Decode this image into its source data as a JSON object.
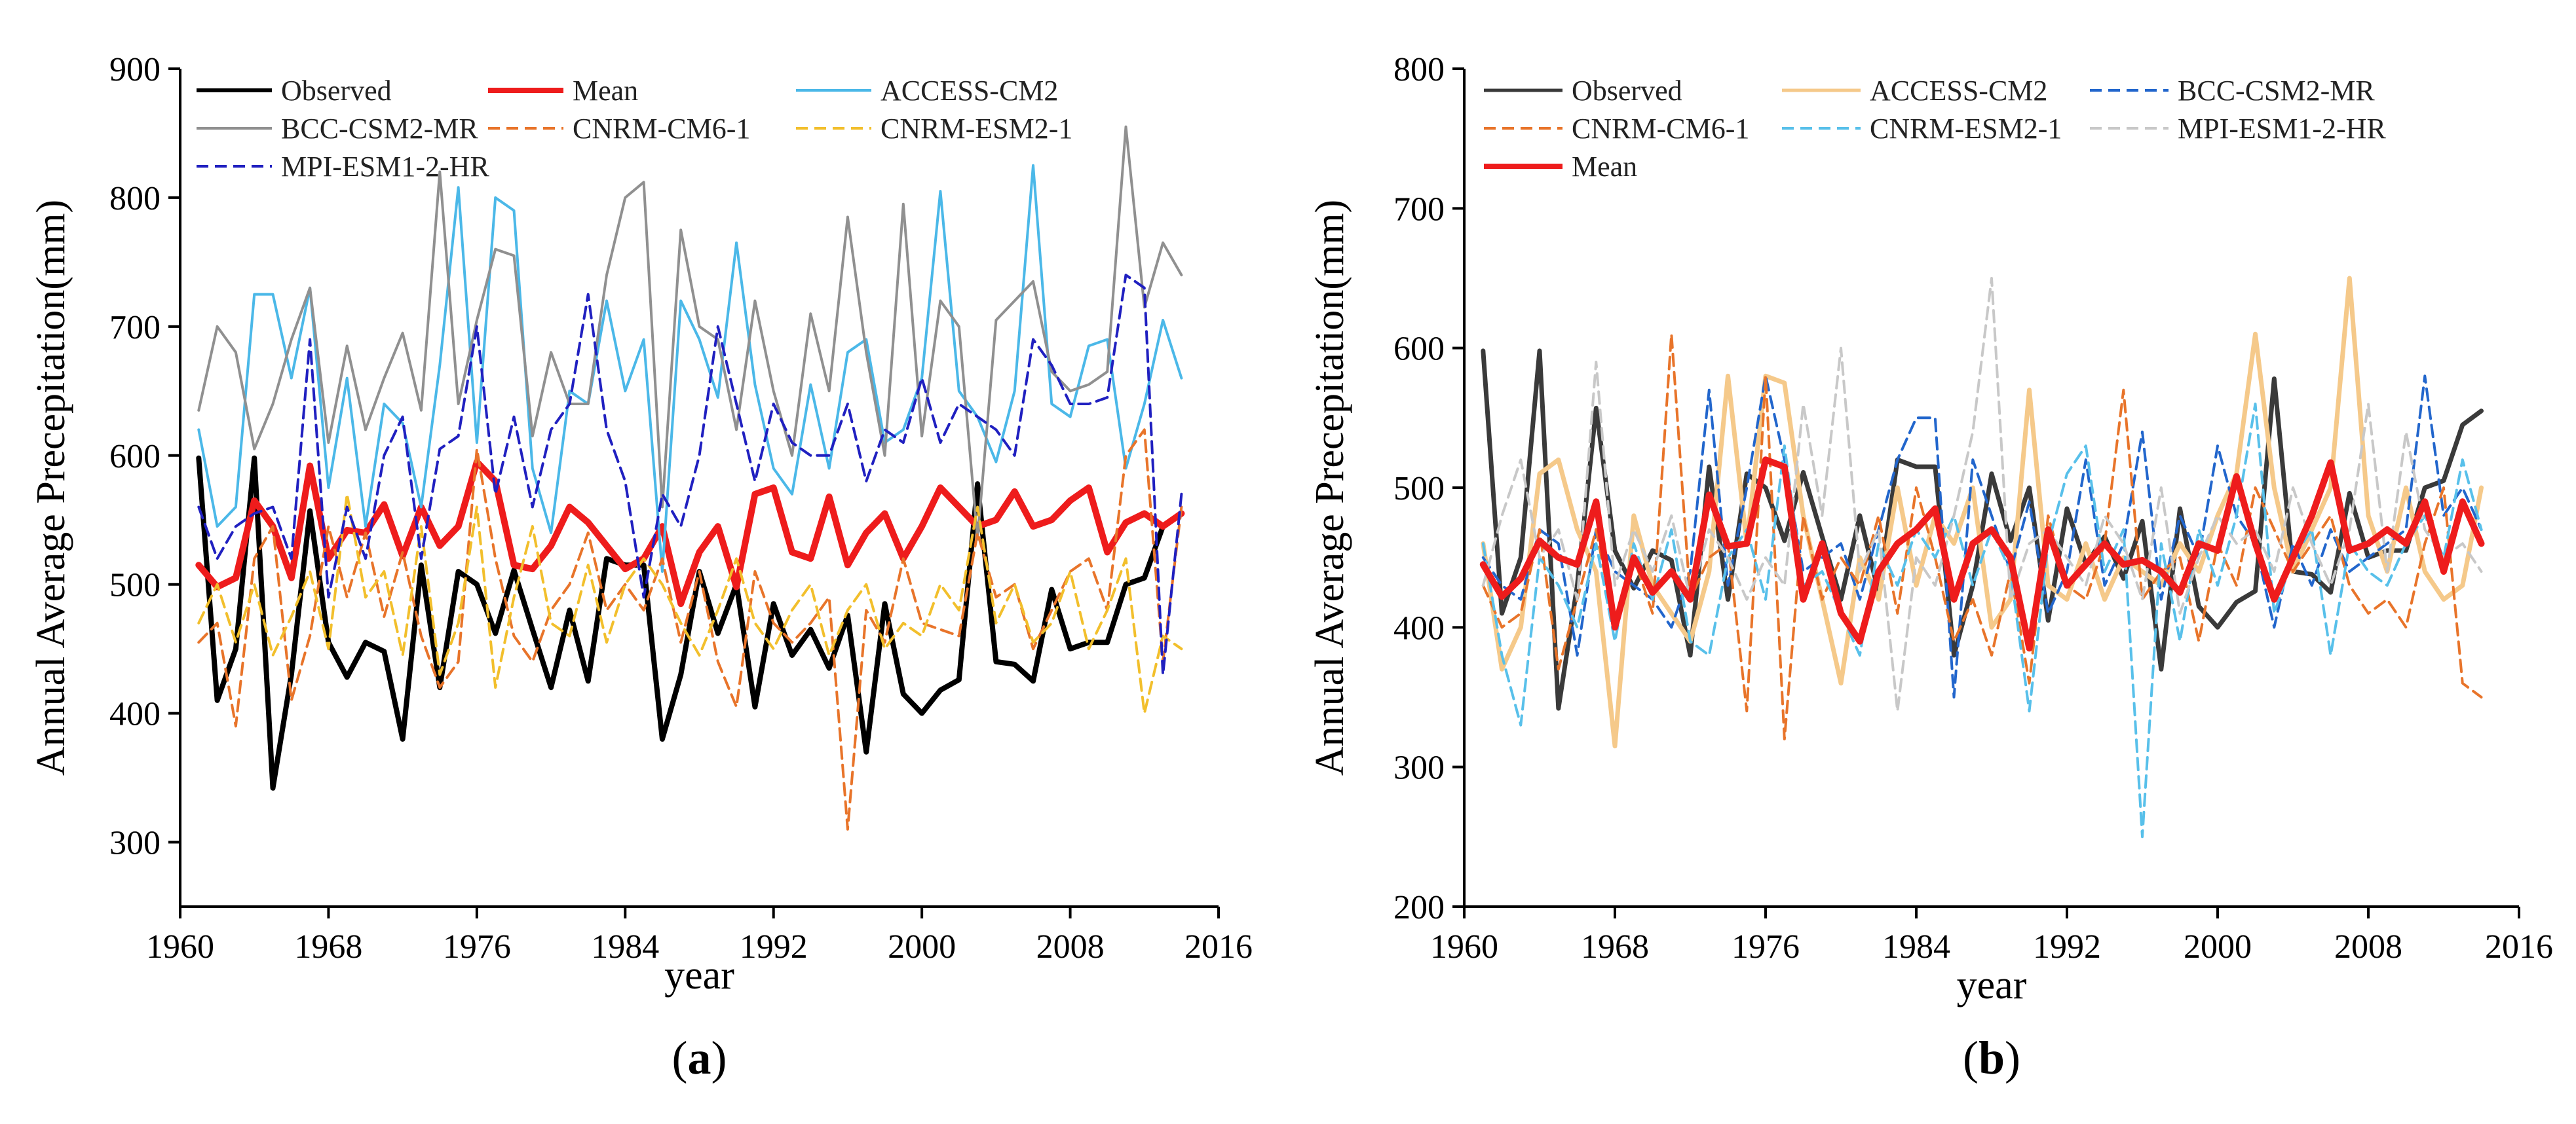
{
  "chart_data": [
    {
      "type": "line",
      "panel_label": "a",
      "xlabel": "year",
      "ylabel": "Annual Average Precepitation(mm)",
      "xlim": [
        1960,
        2016
      ],
      "ylim": [
        250,
        900
      ],
      "xticks": [
        1960,
        1968,
        1976,
        1984,
        1992,
        2000,
        2008,
        2016
      ],
      "yticks": [
        300,
        400,
        500,
        600,
        700,
        800,
        900
      ],
      "legend_position": "top-left",
      "x": [
        1961,
        1962,
        1963,
        1964,
        1965,
        1966,
        1967,
        1968,
        1969,
        1970,
        1971,
        1972,
        1973,
        1974,
        1975,
        1976,
        1977,
        1978,
        1979,
        1980,
        1981,
        1982,
        1983,
        1984,
        1985,
        1986,
        1987,
        1988,
        1989,
        1990,
        1991,
        1992,
        1993,
        1994,
        1995,
        1996,
        1997,
        1998,
        1999,
        2000,
        2001,
        2002,
        2003,
        2004,
        2005,
        2006,
        2007,
        2008,
        2009,
        2010,
        2011,
        2012,
        2013,
        2014
      ],
      "series": [
        {
          "name": "Observed",
          "color": "#000000",
          "style": "solid",
          "width": 8,
          "values": [
            598,
            410,
            450,
            598,
            342,
            430,
            557,
            455,
            428,
            455,
            448,
            380,
            515,
            420,
            510,
            500,
            462,
            511,
            465,
            420,
            480,
            425,
            520,
            515,
            515,
            380,
            430,
            510,
            462,
            500,
            405,
            485,
            445,
            465,
            435,
            476,
            370,
            485,
            415,
            400,
            418,
            426,
            578,
            440,
            438,
            425,
            496,
            450,
            455,
            455,
            500,
            505,
            545,
            555
          ]
        },
        {
          "name": "Mean",
          "color": "#ee1c1c",
          "style": "solid",
          "width": 10,
          "values": [
            515,
            498,
            505,
            565,
            545,
            505,
            592,
            520,
            542,
            540,
            562,
            522,
            560,
            530,
            545,
            595,
            580,
            515,
            512,
            530,
            560,
            548,
            530,
            512,
            520,
            545,
            485,
            525,
            545,
            498,
            570,
            575,
            525,
            520,
            568,
            515,
            540,
            555,
            520,
            545,
            575,
            560,
            545,
            550,
            572,
            545,
            550,
            565,
            575,
            525,
            548,
            555,
            545,
            555
          ]
        },
        {
          "name": "ACCESS-CM2",
          "color": "#4bb8e8",
          "style": "solid",
          "width": 4,
          "values": [
            620,
            545,
            560,
            725,
            725,
            660,
            730,
            575,
            660,
            545,
            640,
            625,
            560,
            670,
            808,
            610,
            800,
            790,
            590,
            540,
            650,
            640,
            720,
            650,
            690,
            510,
            720,
            690,
            645,
            765,
            655,
            590,
            570,
            655,
            590,
            680,
            690,
            610,
            620,
            660,
            805,
            650,
            630,
            595,
            650,
            825,
            640,
            630,
            685,
            690,
            590,
            640,
            705,
            660
          ]
        },
        {
          "name": "BCC-CSM2-MR",
          "color": "#909090",
          "style": "solid",
          "width": 4,
          "values": [
            635,
            700,
            680,
            605,
            640,
            690,
            730,
            610,
            685,
            620,
            660,
            695,
            635,
            820,
            640,
            705,
            760,
            755,
            615,
            680,
            640,
            640,
            740,
            800,
            812,
            560,
            775,
            700,
            690,
            620,
            720,
            650,
            600,
            710,
            650,
            785,
            680,
            600,
            795,
            615,
            720,
            700,
            535,
            705,
            720,
            735,
            665,
            650,
            655,
            665,
            855,
            715,
            765,
            740
          ]
        },
        {
          "name": "CNRM-CM6-1",
          "color": "#e8742a",
          "style": "dashed",
          "width": 4,
          "values": [
            455,
            470,
            390,
            520,
            545,
            410,
            460,
            545,
            490,
            540,
            475,
            525,
            460,
            420,
            440,
            605,
            520,
            460,
            440,
            480,
            500,
            540,
            480,
            500,
            480,
            520,
            455,
            510,
            440,
            405,
            510,
            470,
            455,
            470,
            490,
            310,
            480,
            455,
            520,
            470,
            465,
            460,
            540,
            490,
            500,
            450,
            480,
            510,
            520,
            480,
            600,
            620,
            440,
            560
          ]
        },
        {
          "name": "CNRM-ESM2-1",
          "color": "#f2bf2c",
          "style": "dashed",
          "width": 4,
          "values": [
            470,
            500,
            455,
            500,
            445,
            475,
            510,
            450,
            570,
            490,
            510,
            445,
            545,
            430,
            470,
            560,
            420,
            490,
            545,
            470,
            460,
            515,
            455,
            500,
            520,
            500,
            470,
            445,
            480,
            520,
            470,
            450,
            480,
            500,
            445,
            480,
            500,
            450,
            470,
            460,
            500,
            480,
            560,
            470,
            500,
            455,
            470,
            510,
            450,
            480,
            520,
            400,
            460,
            450
          ]
        },
        {
          "name": "MPI-ESM1-2-HR",
          "color": "#2020c0",
          "style": "dashed",
          "width": 4,
          "values": [
            560,
            520,
            545,
            555,
            560,
            520,
            690,
            490,
            560,
            520,
            600,
            630,
            520,
            605,
            615,
            700,
            570,
            630,
            560,
            620,
            640,
            725,
            620,
            580,
            490,
            570,
            545,
            600,
            700,
            640,
            580,
            640,
            610,
            600,
            600,
            640,
            580,
            620,
            610,
            660,
            610,
            640,
            630,
            620,
            600,
            690,
            670,
            640,
            640,
            645,
            740,
            730,
            430,
            570
          ]
        }
      ]
    },
    {
      "type": "line",
      "panel_label": "b",
      "xlabel": "year",
      "ylabel": "Annual Average Precepitation(mm)",
      "xlim": [
        1960,
        2016
      ],
      "ylim": [
        200,
        800
      ],
      "xticks": [
        1960,
        1968,
        1976,
        1984,
        1992,
        2000,
        2008,
        2016
      ],
      "yticks": [
        200,
        300,
        400,
        500,
        600,
        700,
        800
      ],
      "legend_position": "top-left",
      "x": [
        1961,
        1962,
        1963,
        1964,
        1965,
        1966,
        1967,
        1968,
        1969,
        1970,
        1971,
        1972,
        1973,
        1974,
        1975,
        1976,
        1977,
        1978,
        1979,
        1980,
        1981,
        1982,
        1983,
        1984,
        1985,
        1986,
        1987,
        1988,
        1989,
        1990,
        1991,
        1992,
        1993,
        1994,
        1995,
        1996,
        1997,
        1998,
        1999,
        2000,
        2001,
        2002,
        2003,
        2004,
        2005,
        2006,
        2007,
        2008,
        2009,
        2010,
        2011,
        2012,
        2013,
        2014
      ],
      "series": [
        {
          "name": "Observed",
          "color": "#3a3a3a",
          "style": "solid",
          "width": 7,
          "values": [
            598,
            410,
            450,
            598,
            342,
            430,
            557,
            455,
            428,
            455,
            448,
            380,
            515,
            420,
            510,
            500,
            462,
            511,
            465,
            420,
            480,
            425,
            520,
            515,
            515,
            380,
            430,
            510,
            462,
            500,
            405,
            485,
            445,
            465,
            435,
            476,
            370,
            485,
            415,
            400,
            418,
            426,
            578,
            440,
            438,
            425,
            496,
            450,
            455,
            455,
            500,
            505,
            545,
            555
          ]
        },
        {
          "name": "ACCESS-CM2",
          "color": "#f5c98a",
          "style": "solid",
          "width": 7,
          "values": [
            460,
            370,
            400,
            510,
            520,
            470,
            440,
            315,
            480,
            430,
            410,
            390,
            440,
            580,
            460,
            580,
            575,
            480,
            420,
            360,
            450,
            420,
            500,
            430,
            480,
            460,
            500,
            400,
            420,
            570,
            430,
            420,
            460,
            420,
            450,
            440,
            430,
            460,
            440,
            480,
            510,
            610,
            500,
            440,
            470,
            500,
            650,
            480,
            440,
            500,
            440,
            420,
            430,
            500
          ]
        },
        {
          "name": "BCC-CSM2-MR",
          "color": "#2266cc",
          "style": "dashed",
          "width": 4,
          "values": [
            450,
            430,
            420,
            470,
            460,
            380,
            470,
            440,
            430,
            420,
            400,
            440,
            570,
            430,
            500,
            580,
            520,
            440,
            450,
            460,
            420,
            470,
            520,
            550,
            550,
            350,
            520,
            480,
            440,
            490,
            410,
            440,
            520,
            430,
            460,
            540,
            420,
            480,
            450,
            530,
            480,
            460,
            400,
            460,
            430,
            470,
            440,
            450,
            460,
            470,
            580,
            480,
            500,
            470
          ]
        },
        {
          "name": "CNRM-CM6-1",
          "color": "#e8742a",
          "style": "dashed",
          "width": 4,
          "values": [
            430,
            400,
            410,
            470,
            370,
            420,
            470,
            400,
            450,
            410,
            610,
            420,
            450,
            460,
            340,
            580,
            320,
            480,
            420,
            450,
            430,
            480,
            410,
            500,
            450,
            390,
            420,
            380,
            440,
            360,
            480,
            430,
            420,
            460,
            570,
            420,
            440,
            450,
            390,
            460,
            430,
            500,
            470,
            440,
            460,
            480,
            430,
            410,
            420,
            400,
            460,
            500,
            360,
            350
          ]
        },
        {
          "name": "CNRM-ESM2-1",
          "color": "#58c0ea",
          "style": "dashed",
          "width": 4,
          "values": [
            460,
            380,
            330,
            450,
            430,
            400,
            460,
            390,
            460,
            420,
            470,
            390,
            380,
            450,
            470,
            420,
            530,
            430,
            440,
            410,
            380,
            460,
            430,
            470,
            450,
            480,
            430,
            470,
            440,
            340,
            460,
            510,
            530,
            440,
            470,
            250,
            460,
            390,
            470,
            430,
            480,
            560,
            410,
            450,
            470,
            380,
            460,
            440,
            430,
            460,
            480,
            450,
            520,
            470
          ]
        },
        {
          "name": "MPI-ESM1-2-HR",
          "color": "#c8c8c8",
          "style": "dashed",
          "width": 4,
          "values": [
            430,
            480,
            520,
            450,
            470,
            420,
            590,
            430,
            470,
            440,
            480,
            420,
            470,
            450,
            420,
            450,
            430,
            560,
            480,
            600,
            440,
            470,
            340,
            450,
            430,
            480,
            540,
            650,
            420,
            460,
            470,
            450,
            430,
            480,
            460,
            420,
            500,
            410,
            450,
            480,
            460,
            470,
            440,
            500,
            460,
            430,
            470,
            560,
            440,
            540,
            470,
            450,
            460,
            440
          ]
        },
        {
          "name": "Mean",
          "color": "#ee1c1c",
          "style": "solid",
          "width": 10,
          "values": [
            445,
            422,
            435,
            462,
            450,
            445,
            490,
            400,
            450,
            425,
            440,
            420,
            495,
            458,
            460,
            520,
            515,
            420,
            460,
            410,
            390,
            440,
            460,
            470,
            485,
            420,
            460,
            470,
            450,
            385,
            470,
            430,
            445,
            460,
            445,
            448,
            440,
            425,
            460,
            455,
            508,
            460,
            420,
            450,
            480,
            518,
            455,
            460,
            470,
            460,
            490,
            440,
            490,
            460
          ]
        }
      ]
    }
  ]
}
